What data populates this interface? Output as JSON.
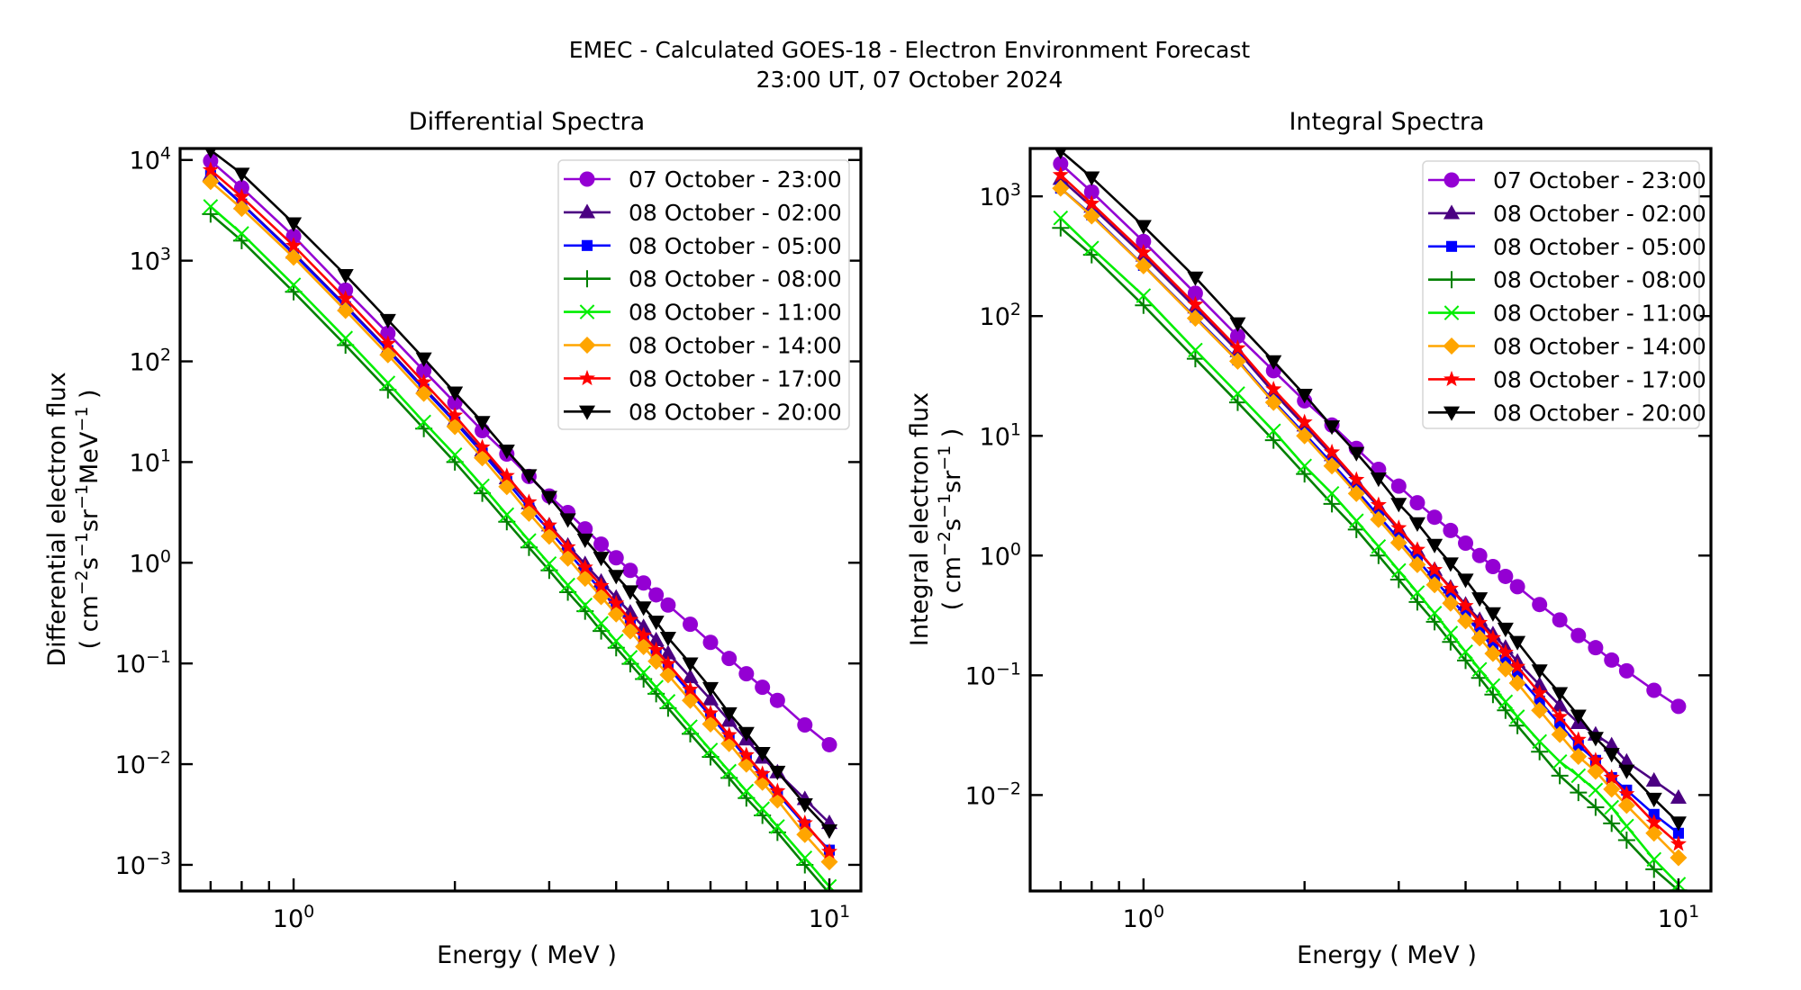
{
  "figure": {
    "title_line1": "EMEC - Calculated GOES-18 - Electron Environment Forecast",
    "title_line2": "23:00 UT, 07 October 2024"
  },
  "series_styles": [
    {
      "name": "07 October - 23:00",
      "color": "#9400D3",
      "marker": "circle"
    },
    {
      "name": "08 October - 02:00",
      "color": "#4B0082",
      "marker": "triangle-up"
    },
    {
      "name": "08 October - 05:00",
      "color": "#0000FF",
      "marker": "square"
    },
    {
      "name": "08 October - 08:00",
      "color": "#008000",
      "marker": "plus"
    },
    {
      "name": "08 October - 11:00",
      "color": "#00EE00",
      "marker": "x"
    },
    {
      "name": "08 October - 14:00",
      "color": "#FFA500",
      "marker": "diamond"
    },
    {
      "name": "08 October - 17:00",
      "color": "#FF0000",
      "marker": "star"
    },
    {
      "name": "08 October - 20:00",
      "color": "#000000",
      "marker": "triangle-down"
    }
  ],
  "chart_data": [
    {
      "type": "line",
      "title": "Differential Spectra",
      "xlabel": "Energy ( MeV )",
      "ylabel_line1": "Differential electron flux",
      "ylabel_line2_parts": [
        "( cm",
        "−2",
        "s",
        "−1",
        "sr",
        "−1",
        "MeV",
        "−1",
        " )"
      ],
      "xscale": "log",
      "yscale": "log",
      "xlim": [
        0.614,
        11.45
      ],
      "ylim": [
        0.00055,
        13000
      ],
      "xticks": [
        {
          "value": 1,
          "base": "10",
          "exp": "0"
        },
        {
          "value": 10,
          "base": "10",
          "exp": "1"
        }
      ],
      "yticks": [
        {
          "value": 10000,
          "base": "10",
          "exp": "4"
        },
        {
          "value": 1000,
          "base": "10",
          "exp": "3"
        },
        {
          "value": 100,
          "base": "10",
          "exp": "2"
        },
        {
          "value": 10,
          "base": "10",
          "exp": "1"
        },
        {
          "value": 1,
          "base": "10",
          "exp": "0"
        },
        {
          "value": 0.1,
          "base": "10",
          "exp": "−1"
        },
        {
          "value": 0.01,
          "base": "10",
          "exp": "−2"
        },
        {
          "value": 0.001,
          "base": "10",
          "exp": "−3"
        }
      ],
      "grid": false,
      "legend": "top-right",
      "x": [
        0.7,
        0.8,
        1.0,
        1.25,
        1.5,
        1.75,
        2.0,
        2.25,
        2.5,
        2.75,
        3.0,
        3.25,
        3.5,
        3.75,
        4.0,
        4.25,
        4.5,
        4.75,
        5.0,
        5.5,
        6.0,
        6.5,
        7.0,
        7.5,
        8.0,
        9.0,
        10.0
      ],
      "series": [
        {
          "name": "07 October - 23:00",
          "values": [
            9800,
            5300,
            1750,
            510,
            190,
            81,
            39,
            20.5,
            12,
            7.2,
            4.6,
            3.15,
            2.17,
            1.53,
            1.12,
            0.84,
            0.63,
            0.48,
            0.38,
            0.245,
            0.162,
            0.112,
            0.079,
            0.058,
            0.043,
            0.0245,
            0.0156
          ]
        },
        {
          "name": "08 October - 02:00",
          "values": [
            7100,
            3700,
            1200,
            360,
            132,
            55,
            26,
            13,
            6.9,
            3.9,
            2.35,
            1.48,
            0.97,
            0.65,
            0.45,
            0.32,
            0.23,
            0.17,
            0.126,
            0.073,
            0.044,
            0.027,
            0.0176,
            0.0116,
            0.0083,
            0.0045,
            0.0026
          ]
        },
        {
          "name": "08 October - 05:00",
          "values": [
            7000,
            3650,
            1170,
            350,
            128,
            53,
            25,
            12.3,
            6.4,
            3.5,
            2.1,
            1.28,
            0.81,
            0.53,
            0.36,
            0.25,
            0.175,
            0.125,
            0.092,
            0.051,
            0.03,
            0.0183,
            0.0116,
            0.0076,
            0.0051,
            0.0025,
            0.0014
          ]
        },
        {
          "name": "08 October - 08:00",
          "values": [
            2900,
            1580,
            490,
            145,
            52,
            21.5,
            10,
            4.9,
            2.55,
            1.42,
            0.84,
            0.51,
            0.33,
            0.21,
            0.143,
            0.099,
            0.07,
            0.05,
            0.036,
            0.02,
            0.0118,
            0.0073,
            0.0046,
            0.0031,
            0.0021,
            0.001,
            0.00052
          ]
        },
        {
          "name": "08 October - 11:00",
          "values": [
            3450,
            1860,
            575,
            170,
            61,
            25,
            11.8,
            5.8,
            3.0,
            1.66,
            0.98,
            0.6,
            0.38,
            0.25,
            0.167,
            0.115,
            0.081,
            0.058,
            0.042,
            0.0235,
            0.0138,
            0.0085,
            0.0054,
            0.0036,
            0.0024,
            0.00117,
            0.00061
          ]
        },
        {
          "name": "08 October - 14:00",
          "values": [
            6100,
            3300,
            1080,
            320,
            116,
            48,
            22.5,
            11,
            5.7,
            3.1,
            1.83,
            1.11,
            0.7,
            0.46,
            0.31,
            0.21,
            0.147,
            0.105,
            0.077,
            0.043,
            0.025,
            0.016,
            0.01,
            0.0066,
            0.0044,
            0.002,
            0.00107
          ]
        },
        {
          "name": "08 October - 17:00",
          "values": [
            7950,
            4300,
            1410,
            420,
            150,
            62,
            29,
            14,
            7.3,
            4.0,
            2.35,
            1.43,
            0.9,
            0.59,
            0.395,
            0.271,
            0.19,
            0.136,
            0.099,
            0.055,
            0.032,
            0.0195,
            0.0123,
            0.008,
            0.0054,
            0.0026,
            0.00135
          ]
        },
        {
          "name": "08 October - 20:00",
          "values": [
            12500,
            7300,
            2350,
            720,
            258,
            107,
            49,
            25,
            13,
            7.4,
            4.5,
            2.7,
            1.7,
            1.12,
            0.74,
            0.52,
            0.36,
            0.26,
            0.18,
            0.1,
            0.057,
            0.032,
            0.0204,
            0.0129,
            0.0084,
            0.004,
            0.0022
          ]
        }
      ]
    },
    {
      "type": "line",
      "title": "Integral Spectra",
      "xlabel": "Energy ( MeV )",
      "ylabel_line1": "Integral electron flux",
      "ylabel_line2_parts": [
        "( cm",
        "−2",
        "s",
        "−1",
        "sr",
        "−1",
        " )"
      ],
      "xscale": "log",
      "yscale": "log",
      "xlim": [
        0.614,
        11.5
      ],
      "ylim": [
        0.00158,
        2510
      ],
      "xticks": [
        {
          "value": 1,
          "base": "10",
          "exp": "0"
        },
        {
          "value": 10,
          "base": "10",
          "exp": "1"
        }
      ],
      "yticks": [
        {
          "value": 1000,
          "base": "10",
          "exp": "3"
        },
        {
          "value": 100,
          "base": "10",
          "exp": "2"
        },
        {
          "value": 10,
          "base": "10",
          "exp": "1"
        },
        {
          "value": 1,
          "base": "10",
          "exp": "0"
        },
        {
          "value": 0.1,
          "base": "10",
          "exp": "−1"
        },
        {
          "value": 0.01,
          "base": "10",
          "exp": "−2"
        }
      ],
      "grid": false,
      "legend": "top-right",
      "x": [
        0.7,
        0.8,
        1.0,
        1.25,
        1.5,
        1.75,
        2.0,
        2.25,
        2.5,
        2.75,
        3.0,
        3.25,
        3.5,
        3.75,
        4.0,
        4.25,
        4.5,
        4.75,
        5.0,
        5.5,
        6.0,
        6.5,
        7.0,
        7.5,
        8.0,
        9.0,
        10.0
      ],
      "series": [
        {
          "name": "07 October - 23:00",
          "values": [
            1870,
            1090,
            420,
            155,
            68,
            35,
            19.6,
            12.3,
            7.85,
            5.25,
            3.8,
            2.76,
            2.09,
            1.62,
            1.27,
            1.0,
            0.81,
            0.67,
            0.55,
            0.39,
            0.29,
            0.215,
            0.17,
            0.134,
            0.109,
            0.075,
            0.055
          ]
        },
        {
          "name": "08 October - 02:00",
          "values": [
            1400,
            820,
            320,
            118,
            51,
            23,
            12.2,
            6.9,
            4.1,
            2.55,
            1.65,
            1.1,
            0.76,
            0.54,
            0.39,
            0.29,
            0.22,
            0.17,
            0.13,
            0.083,
            0.056,
            0.04,
            0.032,
            0.026,
            0.019,
            0.0132,
            0.0095
          ]
        },
        {
          "name": "08 October - 05:00",
          "values": [
            1170,
            700,
            265,
            98,
            43,
            19.5,
            10.4,
            5.9,
            3.5,
            2.15,
            1.38,
            0.92,
            0.63,
            0.44,
            0.315,
            0.23,
            0.172,
            0.13,
            0.1,
            0.061,
            0.039,
            0.026,
            0.0195,
            0.014,
            0.011,
            0.0069,
            0.0048
          ]
        },
        {
          "name": "08 October - 08:00",
          "values": [
            545,
            325,
            123,
            44,
            19,
            9.2,
            4.8,
            2.7,
            1.65,
            1.0,
            0.63,
            0.41,
            0.28,
            0.19,
            0.133,
            0.095,
            0.069,
            0.051,
            0.038,
            0.023,
            0.0145,
            0.0105,
            0.0079,
            0.0058,
            0.0042,
            0.0024,
            0.0016
          ]
        },
        {
          "name": "08 October - 11:00",
          "values": [
            660,
            370,
            148,
            52,
            22.5,
            11,
            5.6,
            3.3,
            1.95,
            1.19,
            0.75,
            0.49,
            0.33,
            0.225,
            0.157,
            0.112,
            0.082,
            0.06,
            0.045,
            0.028,
            0.019,
            0.0145,
            0.011,
            0.0079,
            0.0055,
            0.0029,
            0.0018
          ]
        },
        {
          "name": "08 October - 14:00",
          "values": [
            1170,
            685,
            263,
            96,
            42,
            19,
            10,
            5.6,
            3.3,
            2.0,
            1.28,
            0.84,
            0.57,
            0.4,
            0.285,
            0.205,
            0.152,
            0.113,
            0.086,
            0.051,
            0.032,
            0.021,
            0.0158,
            0.0112,
            0.0082,
            0.0048,
            0.003
          ]
        },
        {
          "name": "08 October - 17:00",
          "values": [
            1510,
            870,
            340,
            125,
            54,
            24.5,
            13,
            7.3,
            4.3,
            2.65,
            1.7,
            1.12,
            0.76,
            0.53,
            0.38,
            0.275,
            0.205,
            0.155,
            0.118,
            0.071,
            0.045,
            0.029,
            0.0195,
            0.014,
            0.0102,
            0.0059,
            0.0039
          ]
        },
        {
          "name": "08 October - 20:00",
          "values": [
            2400,
            1440,
            565,
            210,
            87,
            42,
            22,
            12,
            7.2,
            4.4,
            2.7,
            1.86,
            1.23,
            0.86,
            0.63,
            0.44,
            0.33,
            0.245,
            0.19,
            0.11,
            0.071,
            0.046,
            0.03,
            0.022,
            0.016,
            0.0093,
            0.0059
          ]
        }
      ]
    }
  ]
}
